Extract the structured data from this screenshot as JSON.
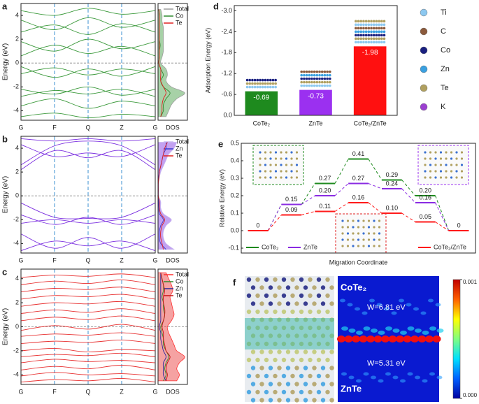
{
  "chart_data": [
    {
      "type": "band",
      "panel": "a",
      "ylabel": "Energy (eV)",
      "categories": [
        "G",
        "F",
        "Q",
        "Z",
        "G"
      ],
      "ylim": [
        -4.8,
        5
      ],
      "yticks": [
        -4,
        -2,
        0,
        2,
        4
      ],
      "bands": {
        "color": "#3c9a3c",
        "values": [
          [
            -4.5,
            -4.2,
            -4.6,
            -4.3,
            -4.5
          ],
          [
            -3.6,
            -3.0,
            -3.8,
            -3.2,
            -3.6
          ],
          [
            -2.8,
            -2.3,
            -2.6,
            -2.2,
            -2.8
          ],
          [
            -2.2,
            -2.6,
            -2.0,
            -2.7,
            -2.2
          ],
          [
            -0.9,
            -0.4,
            -1.0,
            -0.5,
            -0.9
          ],
          [
            -0.3,
            -1.2,
            -0.5,
            -1.1,
            -0.3
          ],
          [
            0.6,
            1.5,
            0.8,
            1.4,
            0.6
          ],
          [
            1.8,
            1.0,
            2.0,
            1.2,
            1.8
          ],
          [
            2.6,
            3.2,
            2.4,
            3.3,
            2.6
          ],
          [
            3.6,
            2.8,
            3.8,
            3.0,
            3.6
          ],
          [
            4.4,
            4.0,
            4.6,
            4.1,
            4.4
          ]
        ]
      },
      "dos": {
        "xlabel": "DOS",
        "xlim": [
          0,
          1.1
        ],
        "energies": [
          -4.5,
          -4,
          -3.5,
          -3,
          -2.5,
          -2,
          -1.5,
          -1,
          -0.5,
          0,
          0.5,
          1,
          1.5,
          2,
          2.5,
          3,
          3.5,
          4,
          4.5
        ],
        "series": [
          {
            "name": "Total",
            "color": "#9e9e9e",
            "values": [
              0.3,
              0.4,
              0.5,
              0.7,
              1.0,
              0.5,
              0.3,
              0.35,
              0.3,
              0.1,
              0.15,
              0.2,
              0.2,
              0.2,
              0.2,
              0.2,
              0.15,
              0.15,
              0.1
            ]
          },
          {
            "name": "Co",
            "color": "#2e8b2e",
            "values": [
              0.1,
              0.2,
              0.2,
              0.3,
              0.45,
              0.2,
              0.1,
              0.2,
              0.1,
              0.03,
              0.05,
              0.05,
              0.08,
              0.05,
              0.05,
              0.05,
              0.05,
              0.05,
              0.03
            ]
          },
          {
            "name": "Te",
            "color": "#e02020",
            "values": [
              0.1,
              0.15,
              0.15,
              0.2,
              0.3,
              0.2,
              0.1,
              0.1,
              0.1,
              0.03,
              0.05,
              0.05,
              0.05,
              0.05,
              0.05,
              0.05,
              0.05,
              0.05,
              0.03
            ]
          }
        ]
      }
    },
    {
      "type": "band",
      "panel": "b",
      "ylabel": "Energy (eV)",
      "categories": [
        "G",
        "F",
        "Q",
        "Z",
        "G"
      ],
      "ylim": [
        -4.8,
        5
      ],
      "yticks": [
        -4,
        -2,
        0,
        2,
        4
      ],
      "bands": {
        "color": "#7b2fe0",
        "values": [
          [
            -4.6,
            -3.8,
            -4.2,
            -3.8,
            -4.6
          ],
          [
            -3.2,
            -4.4,
            -3.5,
            -4.4,
            -3.2
          ],
          [
            -2.3,
            -2.0,
            -2.3,
            -2.0,
            -2.3
          ],
          [
            -1.6,
            -2.4,
            -1.8,
            -2.4,
            -1.6
          ],
          [
            -0.6,
            -1.8,
            -1.9,
            -1.8,
            -0.6
          ],
          [
            2.2,
            3.8,
            3.2,
            3.8,
            2.2
          ],
          [
            2.6,
            4.2,
            4.6,
            4.2,
            2.6
          ],
          [
            4.3,
            3.3,
            3.6,
            3.3,
            4.3
          ],
          [
            4.8,
            4.6,
            4.8,
            4.6,
            4.8
          ]
        ]
      },
      "dos": {
        "xlabel": "DOS",
        "xlim": [
          0,
          1.1
        ],
        "energies": [
          -4.5,
          -4,
          -3.5,
          -3,
          -2.5,
          -2,
          -1.5,
          -1,
          -0.5,
          0,
          0.5,
          1,
          1.5,
          2,
          2.5,
          3,
          3.5,
          4,
          4.5
        ],
        "series": [
          {
            "name": "Total",
            "color": "#c8b8f0",
            "values": [
              0.6,
              0.3,
              0.2,
              0.2,
              0.3,
              0.5,
              0.2,
              0.1,
              0.1,
              0.02,
              0.02,
              0.02,
              0.05,
              0.1,
              0.2,
              0.3,
              0.4,
              0.6,
              0.7
            ]
          },
          {
            "name": "Zn",
            "color": "#3a3ad0",
            "values": [
              0.3,
              0.1,
              0.05,
              0.05,
              0.1,
              0.2,
              0.05,
              0.03,
              0.02,
              0.01,
              0.01,
              0.01,
              0.02,
              0.05,
              0.1,
              0.15,
              0.2,
              0.3,
              0.3
            ]
          },
          {
            "name": "Te",
            "color": "#e02020",
            "values": [
              0.2,
              0.15,
              0.1,
              0.1,
              0.15,
              0.25,
              0.1,
              0.05,
              0.05,
              0.01,
              0.01,
              0.01,
              0.03,
              0.05,
              0.1,
              0.15,
              0.2,
              0.25,
              0.35
            ]
          }
        ]
      }
    },
    {
      "type": "band",
      "panel": "c",
      "ylabel": "Energy (eV)",
      "categories": [
        "G",
        "F",
        "Q",
        "Z",
        "G"
      ],
      "ylim": [
        -4.8,
        4.8
      ],
      "yticks": [
        -4,
        -2,
        0,
        2,
        4
      ],
      "bands": {
        "color": "#e83030",
        "values": [
          [
            -4.6,
            -4.4,
            -4.5,
            -4.3,
            -4.6
          ],
          [
            -4.1,
            -3.8,
            -4.0,
            -3.9,
            -4.1
          ],
          [
            -3.6,
            -3.3,
            -3.5,
            -3.2,
            -3.6
          ],
          [
            -3.0,
            -2.7,
            -2.9,
            -2.8,
            -3.0
          ],
          [
            -2.5,
            -2.3,
            -2.4,
            -2.2,
            -2.5
          ],
          [
            -2.0,
            -1.8,
            -2.1,
            -1.9,
            -2.0
          ],
          [
            -1.4,
            -1.2,
            -1.3,
            -1.1,
            -1.4
          ],
          [
            -0.8,
            -0.6,
            -0.7,
            -0.5,
            -0.8
          ],
          [
            -0.3,
            0.1,
            -0.2,
            0.2,
            -0.3
          ],
          [
            0.5,
            0.8,
            0.6,
            0.9,
            0.5
          ],
          [
            1.1,
            1.4,
            1.2,
            1.5,
            1.1
          ],
          [
            1.7,
            2.0,
            1.9,
            2.1,
            1.7
          ],
          [
            2.3,
            2.6,
            2.5,
            2.7,
            2.3
          ],
          [
            2.9,
            3.2,
            3.1,
            3.3,
            2.9
          ],
          [
            3.5,
            3.8,
            3.6,
            3.9,
            3.5
          ],
          [
            4.1,
            4.3,
            4.2,
            4.4,
            4.1
          ]
        ]
      },
      "dos": {
        "xlabel": "DOS",
        "xlim": [
          0,
          1.1
        ],
        "energies": [
          -4.5,
          -4,
          -3.5,
          -3,
          -2.5,
          -2,
          -1.5,
          -1,
          -0.5,
          0,
          0.5,
          1,
          1.5,
          2,
          2.5,
          3,
          3.5,
          4,
          4.5
        ],
        "series": [
          {
            "name": "Total",
            "color": "#ff3030",
            "values": [
              0.7,
              0.8,
              0.7,
              0.8,
              1.0,
              0.7,
              0.6,
              0.5,
              0.4,
              0.35,
              0.5,
              0.6,
              0.55,
              0.5,
              0.45,
              0.55,
              0.5,
              0.4,
              0.3
            ]
          },
          {
            "name": "Co",
            "color": "#2e8b2e",
            "values": [
              0.2,
              0.3,
              0.25,
              0.3,
              0.4,
              0.3,
              0.2,
              0.2,
              0.15,
              0.1,
              0.2,
              0.25,
              0.2,
              0.2,
              0.15,
              0.2,
              0.2,
              0.15,
              0.1
            ]
          },
          {
            "name": "Zn",
            "color": "#2a2a9a",
            "values": [
              0.3,
              0.2,
              0.2,
              0.2,
              0.3,
              0.2,
              0.15,
              0.1,
              0.1,
              0.05,
              0.1,
              0.1,
              0.1,
              0.1,
              0.1,
              0.1,
              0.1,
              0.1,
              0.1
            ]
          },
          {
            "name": "Te",
            "color": "#c81010",
            "values": [
              0.3,
              0.35,
              0.3,
              0.35,
              0.45,
              0.3,
              0.25,
              0.2,
              0.2,
              0.15,
              0.2,
              0.25,
              0.25,
              0.2,
              0.2,
              0.25,
              0.2,
              0.15,
              0.1
            ]
          }
        ]
      }
    },
    {
      "type": "bar",
      "panel": "d",
      "ylabel": "Adsorption Energy (eV)",
      "categories": [
        "CoTe₂",
        "ZnTe",
        "CoTe₂/ZnTe"
      ],
      "values": [
        -0.69,
        -0.73,
        -1.98
      ],
      "colors": [
        "#1e8a1e",
        "#9b30f0",
        "#ff1010"
      ],
      "ylim": [
        0,
        -3.15
      ],
      "yticks": [
        {
          "value": 0,
          "label": "0.0"
        },
        -0.6,
        -1.2,
        -1.8,
        -2.4,
        {
          "value": -3,
          "label": "-3.0"
        }
      ],
      "atoms": [
        {
          "name": "Ti",
          "color": "#8cc8f0"
        },
        {
          "name": "C",
          "color": "#8b5a3c"
        },
        {
          "name": "Co",
          "color": "#1a2080"
        },
        {
          "name": "Zn",
          "color": "#3aa0e0"
        },
        {
          "name": "Te",
          "color": "#b0a060"
        },
        {
          "name": "K",
          "color": "#9b40d0"
        }
      ]
    },
    {
      "type": "levels",
      "panel": "e",
      "ylabel": "Relative Energy (eV)",
      "xlabel": "Migration Coordinate",
      "ylim": [
        -0.128,
        0.5
      ],
      "yticks": [
        -0.1,
        {
          "value": 0,
          "label": "0.0"
        },
        0.1,
        0.2,
        0.3,
        0.4,
        0.5
      ],
      "series": [
        {
          "name": "CoTe₂",
          "color": "#1e8a1e",
          "values": [
            0,
            0.15,
            0.27,
            0.41,
            0.29,
            0.2,
            0
          ],
          "value_labels": [
            "0",
            "0.15",
            "0.27",
            "0.41",
            "0.29",
            "0.20",
            "0"
          ]
        },
        {
          "name": "ZnTe",
          "color": "#8a2be2",
          "values": [
            0,
            0.15,
            0.2,
            0.27,
            0.24,
            0.16,
            0
          ],
          "value_labels": [
            null,
            null,
            "0.20",
            "0.27",
            "0.24",
            "0.16",
            null
          ]
        },
        {
          "name": "CoTe₂/ZnTe",
          "color": "#ff1a1a",
          "values": [
            0,
            0.09,
            0.11,
            0.16,
            0.1,
            0.05,
            0
          ],
          "value_labels": [
            null,
            "0.09",
            "0.11",
            "0.16",
            "0.10",
            "0.05",
            null
          ]
        }
      ]
    },
    {
      "type": "image",
      "panel": "f",
      "labels": [
        "CoTe₂",
        "ZnTe"
      ],
      "annotations": [
        "W=6.81 eV",
        "W=5.31 eV"
      ],
      "colorbar": {
        "lim": [
          0,
          0.001
        ],
        "ticks": [
          0.001,
          {
            "value": 0,
            "label": "0.000"
          }
        ]
      }
    }
  ]
}
